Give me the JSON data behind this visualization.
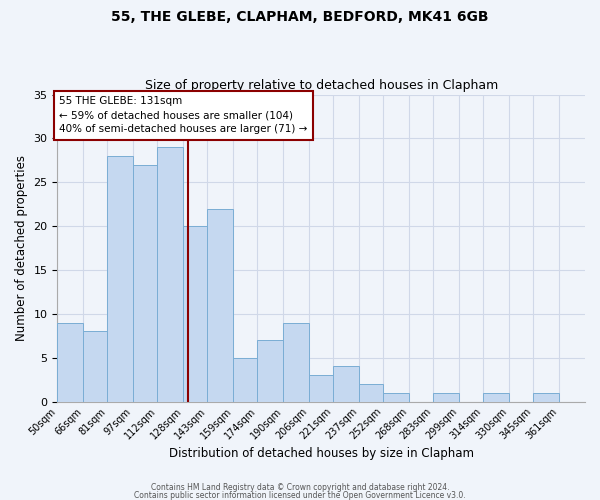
{
  "title": "55, THE GLEBE, CLAPHAM, BEDFORD, MK41 6GB",
  "subtitle": "Size of property relative to detached houses in Clapham",
  "xlabel": "Distribution of detached houses by size in Clapham",
  "ylabel": "Number of detached properties",
  "bin_labels": [
    "50sqm",
    "66sqm",
    "81sqm",
    "97sqm",
    "112sqm",
    "128sqm",
    "143sqm",
    "159sqm",
    "174sqm",
    "190sqm",
    "206sqm",
    "221sqm",
    "237sqm",
    "252sqm",
    "268sqm",
    "283sqm",
    "299sqm",
    "314sqm",
    "330sqm",
    "345sqm",
    "361sqm"
  ],
  "bin_edges": [
    50,
    66,
    81,
    97,
    112,
    128,
    143,
    159,
    174,
    190,
    206,
    221,
    237,
    252,
    268,
    283,
    299,
    314,
    330,
    345,
    361,
    377
  ],
  "counts": [
    9,
    8,
    28,
    27,
    29,
    20,
    22,
    5,
    7,
    9,
    3,
    4,
    2,
    1,
    0,
    1,
    0,
    1,
    0,
    1,
    0
  ],
  "bar_color": "#c5d8f0",
  "bar_edge_color": "#7aadd4",
  "vline_x": 131,
  "vline_color": "#8b0000",
  "annotation_text": "55 THE GLEBE: 131sqm\n← 59% of detached houses are smaller (104)\n40% of semi-detached houses are larger (71) →",
  "annotation_box_color": "white",
  "annotation_box_edge": "#8b0000",
  "ylim": [
    0,
    35
  ],
  "yticks": [
    0,
    5,
    10,
    15,
    20,
    25,
    30,
    35
  ],
  "grid_color": "#d0d8e8",
  "footer1": "Contains HM Land Registry data © Crown copyright and database right 2024.",
  "footer2": "Contains public sector information licensed under the Open Government Licence v3.0.",
  "background_color": "#f0f4fa"
}
